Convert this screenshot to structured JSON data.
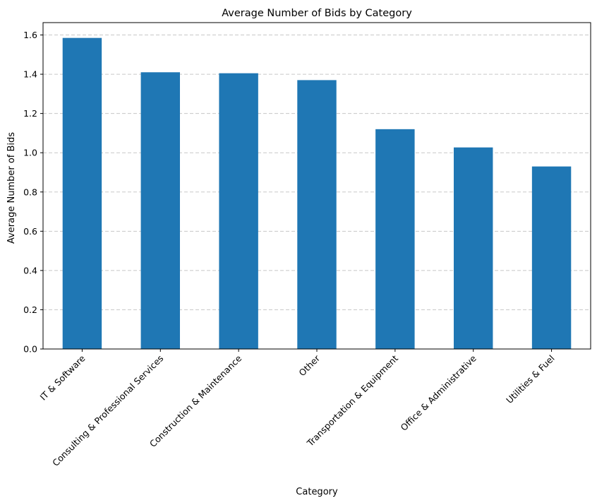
{
  "chart_data": {
    "type": "bar",
    "title": "Average Number of Bids by Category",
    "xlabel": "Category",
    "ylabel": "Average Number of Bids",
    "categories": [
      "IT & Software",
      "Consulting & Professional Services",
      "Construction & Maintenance",
      "Other",
      "Transportation & Equipment",
      "Office & Administrative",
      "Utilities & Fuel"
    ],
    "values": [
      1.585,
      1.41,
      1.405,
      1.37,
      1.12,
      1.027,
      0.93
    ],
    "ylim": [
      0,
      1.663
    ],
    "yticks": [
      0.0,
      0.2,
      0.4,
      0.6,
      0.8,
      1.0,
      1.2,
      1.4,
      1.6
    ],
    "ytick_labels": [
      "0.0",
      "0.2",
      "0.4",
      "0.6",
      "0.8",
      "1.0",
      "1.2",
      "1.4",
      "1.6"
    ],
    "grid": "y-dashed",
    "bar_color": "#1f77b4",
    "grid_color": "#c8c8c8"
  }
}
